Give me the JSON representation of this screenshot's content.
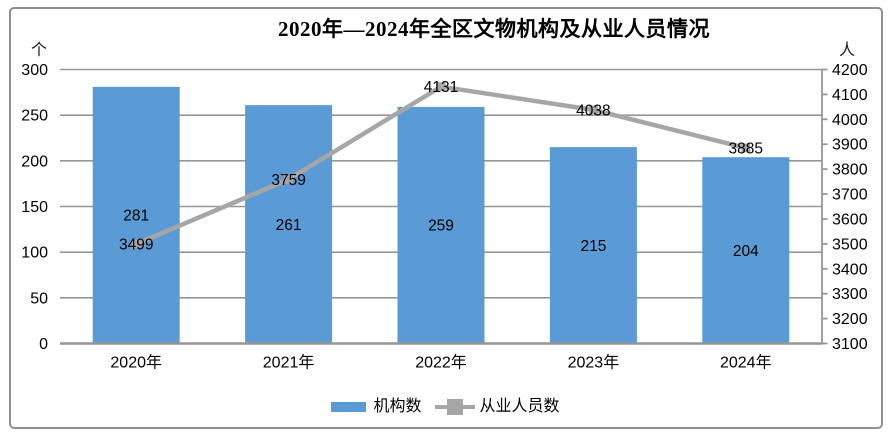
{
  "chart_data": {
    "type": "bar+line",
    "title": "2020年—2024年全区文物机构及从业人员情况",
    "left_axis": {
      "label": "个",
      "min": 0,
      "max": 300,
      "step": 50
    },
    "right_axis": {
      "label": "人",
      "min": 3100,
      "max": 4200,
      "step": 100
    },
    "categories": [
      "2020年",
      "2021年",
      "2022年",
      "2023年",
      "2024年"
    ],
    "series": [
      {
        "name": "机构数",
        "type": "bar",
        "axis": "left",
        "color": "#5b9bd5",
        "values": [
          281,
          261,
          259,
          215,
          204
        ]
      },
      {
        "name": "从业人员数",
        "type": "line",
        "axis": "right",
        "color": "#a6a6a6",
        "values": [
          3499,
          3759,
          4131,
          4038,
          3885
        ]
      }
    ],
    "legend_position": "bottom",
    "grid": true,
    "grid_color": "#969696",
    "text_color": "#000000",
    "frame_border_color": "#8f8f8f"
  }
}
